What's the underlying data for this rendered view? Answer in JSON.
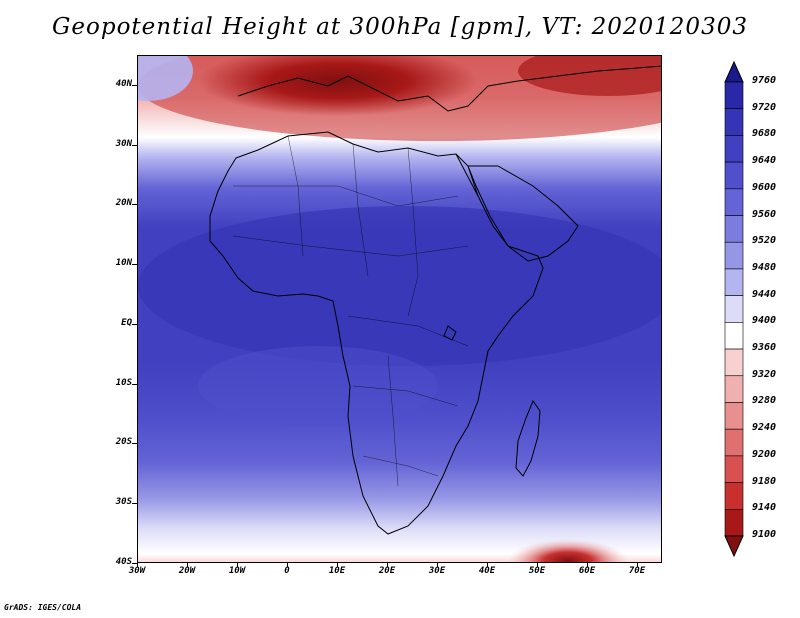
{
  "title": "Geopotential Height at 300hPa [gpm], VT: 2020120303",
  "credit": "GrADS: IGES/COLA",
  "map": {
    "region": "Africa",
    "lat_ticks": [
      "40N",
      "30N",
      "20N",
      "10N",
      "EQ",
      "10S",
      "20S",
      "30S",
      "40S"
    ],
    "lon_ticks": [
      "30W",
      "20W",
      "10W",
      "0",
      "10E",
      "20E",
      "30E",
      "40E",
      "50E",
      "60E",
      "70E"
    ],
    "lat_range": [
      -40,
      44
    ],
    "lon_range": [
      -30,
      75
    ]
  },
  "colorbar": {
    "levels": [
      "9760",
      "9720",
      "9680",
      "9640",
      "9600",
      "9560",
      "9520",
      "9480",
      "9440",
      "9400",
      "9360",
      "9320",
      "9280",
      "9240",
      "9200",
      "9180",
      "9140",
      "9100"
    ],
    "colors": [
      "#1a1a8c",
      "#2828a8",
      "#3434b4",
      "#4040c0",
      "#5050cc",
      "#6464d6",
      "#7c7cde",
      "#9696e6",
      "#b4b4f0",
      "#dcdcf8",
      "#ffffff",
      "#f8d0d0",
      "#f0b0b0",
      "#e89090",
      "#e07070",
      "#d85050",
      "#c83030",
      "#a81818",
      "#801010"
    ]
  }
}
